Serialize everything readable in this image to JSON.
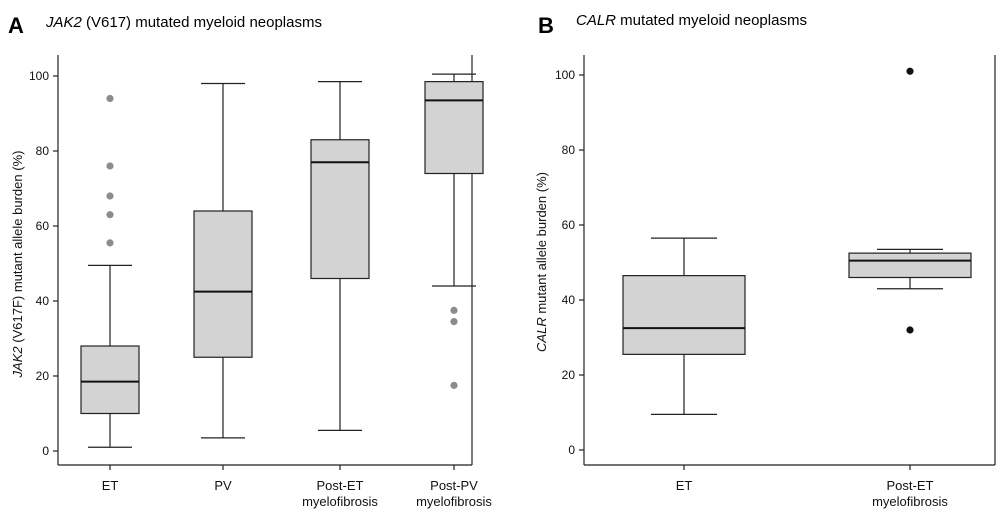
{
  "chart_data": [
    {
      "type": "box",
      "panel": "A",
      "title_italic": "JAK2",
      "title_rest": " (V617) mutated myeloid neoplasms",
      "ylabel_italic": "JAK2",
      "ylabel_rest": " (V617F) mutant allele burden (%)",
      "ylim": [
        0,
        100
      ],
      "yticks": [
        0,
        20,
        40,
        60,
        80,
        100
      ],
      "categories": [
        [
          "ET"
        ],
        [
          "PV"
        ],
        [
          "Post-ET",
          "myelofibrosis"
        ],
        [
          "Post-PV",
          "myelofibrosis"
        ]
      ],
      "boxes": [
        {
          "whisker_low": 1,
          "q1": 10,
          "median": 18.5,
          "q3": 28,
          "whisker_high": 49.5,
          "outliers": [
            55.5,
            63,
            68,
            76,
            94
          ]
        },
        {
          "whisker_low": 3.5,
          "q1": 25,
          "median": 42.5,
          "q3": 64,
          "whisker_high": 98,
          "outliers": []
        },
        {
          "whisker_low": 5.5,
          "q1": 46,
          "median": 77,
          "q3": 83,
          "whisker_high": 98.5,
          "outliers": []
        },
        {
          "whisker_low": 44,
          "q1": 74,
          "median": 93.5,
          "q3": 98.5,
          "whisker_high": 100.5,
          "outliers": [
            17.5,
            34.5,
            37.5
          ]
        }
      ],
      "box_color": "#d3d3d3",
      "outlier_color": "#8c8c8c"
    },
    {
      "type": "box",
      "panel": "B",
      "title_italic": "CALR",
      "title_rest": " mutated myeloid neoplasms",
      "ylabel_italic": "CALR",
      "ylabel_rest": " mutant allele burden (%)",
      "ylim": [
        0,
        100
      ],
      "yticks": [
        0,
        20,
        40,
        60,
        80,
        100
      ],
      "categories": [
        [
          "ET"
        ],
        [
          "Post-ET",
          "myelofibrosis"
        ]
      ],
      "boxes": [
        {
          "whisker_low": 9.5,
          "q1": 25.5,
          "median": 32.5,
          "q3": 46.5,
          "whisker_high": 56.5,
          "outliers": []
        },
        {
          "whisker_low": 43,
          "q1": 46,
          "median": 50.5,
          "q3": 52.5,
          "whisker_high": 53.5,
          "outliers": [
            32,
            101
          ]
        }
      ],
      "box_color": "#d3d3d3",
      "outlier_color": "#111111"
    }
  ]
}
